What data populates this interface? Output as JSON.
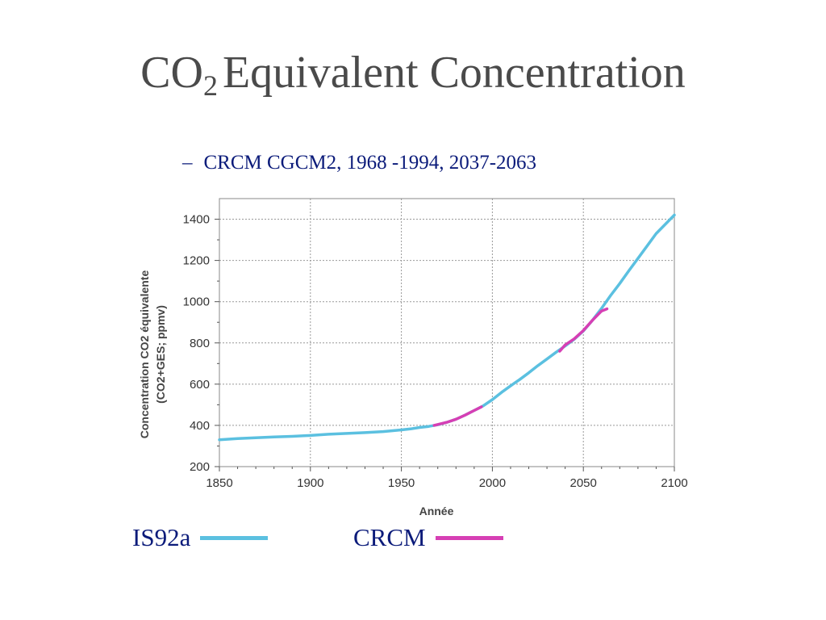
{
  "slide": {
    "title_main": "CO",
    "title_sub": "2",
    "title_rest": "Equivalent Concentration",
    "bullet_dash": "–",
    "bullet_text": "CRCM CGCM2, 1968 -1994, 2037-2063"
  },
  "legend": [
    {
      "label": "IS92a",
      "color": "#5bc0e0"
    },
    {
      "label": "CRCM",
      "color": "#d63fb4"
    }
  ],
  "chart_data": {
    "type": "line",
    "xlabel": "Année",
    "ylabel_line1": "Concentration CO2 équivalente",
    "ylabel_line2": "(CO2+GES; ppmv)",
    "xlim": [
      1850,
      2100
    ],
    "ylim": [
      200,
      1500
    ],
    "x_ticks": [
      1850,
      1900,
      1950,
      2000,
      2050,
      2100
    ],
    "y_ticks": [
      200,
      400,
      600,
      800,
      1000,
      1200,
      1400
    ],
    "grid": true,
    "series": [
      {
        "name": "IS92a",
        "color": "#5bc0e0",
        "x": [
          1850,
          1860,
          1870,
          1880,
          1890,
          1900,
          1910,
          1920,
          1930,
          1940,
          1950,
          1955,
          1960,
          1965,
          1970,
          1975,
          1980,
          1985,
          1990,
          1995,
          2000,
          2005,
          2010,
          2015,
          2020,
          2025,
          2030,
          2035,
          2040,
          2045,
          2050,
          2055,
          2060,
          2065,
          2070,
          2075,
          2080,
          2085,
          2090,
          2095,
          2100
        ],
        "y": [
          330,
          336,
          340,
          344,
          347,
          351,
          357,
          361,
          365,
          370,
          378,
          383,
          390,
          395,
          403,
          415,
          430,
          450,
          472,
          495,
          525,
          560,
          592,
          622,
          655,
          690,
          722,
          755,
          785,
          818,
          858,
          910,
          968,
          1030,
          1088,
          1150,
          1210,
          1270,
          1330,
          1375,
          1420
        ]
      },
      {
        "name": "CRCM",
        "color": "#d63fb4",
        "x": [
          1968,
          1975,
          1980,
          1985,
          1990,
          1994,
          2037,
          2040,
          2045,
          2050,
          2055,
          2060,
          2063
        ],
        "y": [
          400,
          415,
          430,
          450,
          472,
          490,
          760,
          790,
          820,
          860,
          910,
          955,
          965
        ]
      }
    ]
  }
}
